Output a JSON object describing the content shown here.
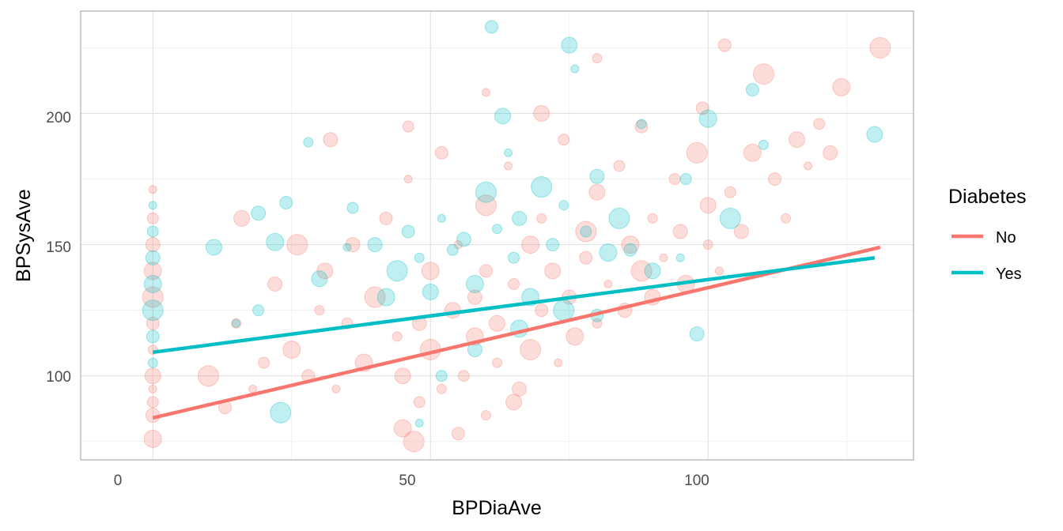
{
  "chart_data": {
    "type": "scatter",
    "xlabel": "BPDiaAve",
    "ylabel": "BPSysAve",
    "xlim": [
      -13,
      137
    ],
    "ylim": [
      68,
      239
    ],
    "x_ticks": [
      0,
      50,
      100
    ],
    "x_tick_labels": [
      "0",
      "50",
      "100"
    ],
    "y_ticks": [
      100,
      150,
      200
    ],
    "y_tick_labels": [
      "100",
      "150",
      "200"
    ],
    "grid": true,
    "legend": {
      "title": "Diabetes",
      "placement": "right",
      "entries": [
        "No",
        "Yes"
      ]
    },
    "colors": {
      "No": "#F8766D",
      "Yes": "#00BFC4"
    },
    "point_alpha": 0.25,
    "series": [
      {
        "name": "No",
        "trend": {
          "x": [
            0,
            131
          ],
          "y": [
            84,
            149
          ]
        },
        "points": [
          [
            0,
            171
          ],
          [
            0,
            160
          ],
          [
            0,
            150
          ],
          [
            0,
            140
          ],
          [
            0,
            130
          ],
          [
            0,
            120
          ],
          [
            0,
            110
          ],
          [
            0,
            100
          ],
          [
            0,
            95
          ],
          [
            0,
            90
          ],
          [
            0,
            85
          ],
          [
            0,
            76
          ],
          [
            10,
            100
          ],
          [
            13,
            88
          ],
          [
            15,
            120
          ],
          [
            16,
            160
          ],
          [
            18,
            95
          ],
          [
            20,
            105
          ],
          [
            22,
            135
          ],
          [
            25,
            110
          ],
          [
            26,
            150
          ],
          [
            28,
            100
          ],
          [
            30,
            125
          ],
          [
            31,
            140
          ],
          [
            33,
            95
          ],
          [
            35,
            120
          ],
          [
            36,
            150
          ],
          [
            38,
            105
          ],
          [
            40,
            130
          ],
          [
            42,
            160
          ],
          [
            44,
            115
          ],
          [
            45,
            100
          ],
          [
            46,
            175
          ],
          [
            48,
            90
          ],
          [
            48,
            120
          ],
          [
            50,
            140
          ],
          [
            50,
            110
          ],
          [
            52,
            185
          ],
          [
            52,
            95
          ],
          [
            54,
            125
          ],
          [
            55,
            150
          ],
          [
            56,
            100
          ],
          [
            58,
            130
          ],
          [
            58,
            115
          ],
          [
            60,
            165
          ],
          [
            60,
            140
          ],
          [
            62,
            105
          ],
          [
            62,
            120
          ],
          [
            64,
            180
          ],
          [
            65,
            135
          ],
          [
            66,
            95
          ],
          [
            68,
            150
          ],
          [
            68,
            110
          ],
          [
            70,
            125
          ],
          [
            70,
            160
          ],
          [
            72,
            140
          ],
          [
            73,
            105
          ],
          [
            74,
            190
          ],
          [
            75,
            130
          ],
          [
            76,
            115
          ],
          [
            78,
            155
          ],
          [
            78,
            145
          ],
          [
            80,
            120
          ],
          [
            80,
            170
          ],
          [
            82,
            135
          ],
          [
            84,
            180
          ],
          [
            85,
            125
          ],
          [
            86,
            150
          ],
          [
            88,
            140
          ],
          [
            88,
            195
          ],
          [
            90,
            160
          ],
          [
            90,
            130
          ],
          [
            92,
            145
          ],
          [
            94,
            175
          ],
          [
            95,
            155
          ],
          [
            96,
            135
          ],
          [
            98,
            185
          ],
          [
            99,
            202
          ],
          [
            100,
            150
          ],
          [
            100,
            165
          ],
          [
            102,
            140
          ],
          [
            104,
            170
          ],
          [
            106,
            155
          ],
          [
            108,
            185
          ],
          [
            110,
            215
          ],
          [
            112,
            175
          ],
          [
            114,
            160
          ],
          [
            116,
            190
          ],
          [
            118,
            180
          ],
          [
            120,
            196
          ],
          [
            122,
            185
          ],
          [
            124,
            210
          ],
          [
            131,
            225
          ],
          [
            103,
            226
          ],
          [
            80,
            221
          ],
          [
            70,
            200
          ],
          [
            60,
            208
          ],
          [
            46,
            195
          ],
          [
            32,
            190
          ],
          [
            45,
            80
          ],
          [
            47,
            75
          ],
          [
            55,
            78
          ],
          [
            60,
            85
          ],
          [
            65,
            90
          ]
        ]
      },
      {
        "name": "Yes",
        "trend": {
          "x": [
            0,
            130
          ],
          "y": [
            109,
            145
          ]
        },
        "points": [
          [
            0,
            165
          ],
          [
            0,
            155
          ],
          [
            0,
            145
          ],
          [
            0,
            135
          ],
          [
            0,
            125
          ],
          [
            0,
            115
          ],
          [
            0,
            105
          ],
          [
            11,
            149
          ],
          [
            15,
            120
          ],
          [
            19,
            125
          ],
          [
            19,
            162
          ],
          [
            22,
            151
          ],
          [
            23,
            86
          ],
          [
            24,
            166
          ],
          [
            28,
            189
          ],
          [
            30,
            137
          ],
          [
            35,
            149
          ],
          [
            36,
            164
          ],
          [
            40,
            150
          ],
          [
            42,
            130
          ],
          [
            44,
            140
          ],
          [
            46,
            155
          ],
          [
            48,
            145
          ],
          [
            50,
            132
          ],
          [
            52,
            160
          ],
          [
            54,
            148
          ],
          [
            56,
            152
          ],
          [
            58,
            135
          ],
          [
            60,
            170
          ],
          [
            61,
            233
          ],
          [
            62,
            156
          ],
          [
            63,
            199
          ],
          [
            64,
            185
          ],
          [
            65,
            145
          ],
          [
            66,
            160
          ],
          [
            68,
            130
          ],
          [
            70,
            172
          ],
          [
            72,
            150
          ],
          [
            74,
            165
          ],
          [
            75,
            226
          ],
          [
            76,
            217
          ],
          [
            78,
            155
          ],
          [
            80,
            176
          ],
          [
            82,
            147
          ],
          [
            84,
            160
          ],
          [
            86,
            148
          ],
          [
            88,
            196
          ],
          [
            90,
            140
          ],
          [
            95,
            145
          ],
          [
            96,
            175
          ],
          [
            98,
            116
          ],
          [
            100,
            198
          ],
          [
            104,
            160
          ],
          [
            108,
            209
          ],
          [
            110,
            188
          ],
          [
            130,
            192
          ],
          [
            48,
            82
          ],
          [
            52,
            100
          ],
          [
            58,
            110
          ],
          [
            66,
            118
          ],
          [
            74,
            125
          ],
          [
            80,
            123
          ]
        ]
      }
    ]
  }
}
